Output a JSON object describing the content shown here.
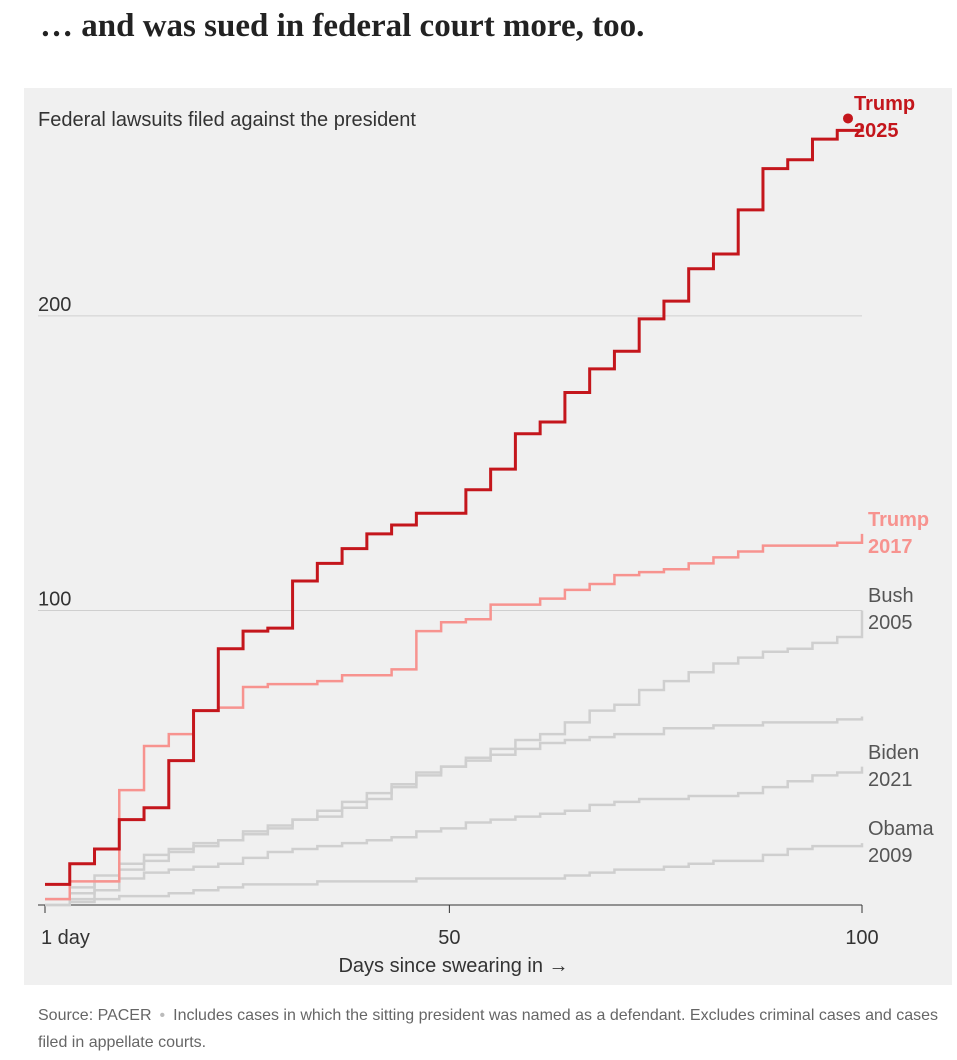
{
  "header": {
    "title": "… and was sued in federal court more, too."
  },
  "chart_data": {
    "type": "step",
    "subtitle": "Federal lawsuits filed against the president",
    "x_label": "Days since swearing in →",
    "x": [
      1,
      4,
      7,
      10,
      13,
      16,
      19,
      22,
      25,
      28,
      31,
      34,
      37,
      40,
      43,
      46,
      49,
      52,
      55,
      58,
      61,
      64,
      67,
      70,
      73,
      76,
      79,
      82,
      85,
      88,
      91,
      94,
      97,
      100
    ],
    "xlim": [
      1,
      100
    ],
    "xticks": [
      {
        "value": 1,
        "label": "1 day"
      },
      50,
      100
    ],
    "ylim": [
      0,
      275
    ],
    "yticks": [
      100,
      200
    ],
    "grid": true,
    "series": [
      {
        "color": "#cfcfcf",
        "values": [
          2,
          6,
          10,
          14,
          17,
          19,
          21,
          22,
          24,
          26,
          29,
          30,
          33,
          36,
          41,
          45,
          47,
          49,
          51,
          53,
          55,
          56,
          57,
          58,
          58,
          60,
          60,
          61,
          61,
          62,
          62,
          62,
          63,
          64
        ]
      },
      {
        "name": "Obama 2009",
        "color": "#cfcfcf",
        "values": [
          0,
          1,
          2,
          3,
          3,
          4,
          5,
          6,
          7,
          7,
          7,
          8,
          8,
          8,
          8,
          9,
          9,
          9,
          9,
          9,
          9,
          10,
          11,
          12,
          12,
          13,
          14,
          15,
          15,
          17,
          19,
          20,
          20,
          21
        ]
      },
      {
        "name": "Biden 2021",
        "color": "#cfcfcf",
        "values": [
          0,
          2,
          5,
          9,
          11,
          12,
          13,
          14,
          16,
          18,
          19,
          20,
          21,
          22,
          23,
          25,
          26,
          28,
          29,
          30,
          31,
          32,
          34,
          35,
          36,
          36,
          37,
          37,
          38,
          40,
          42,
          44,
          45,
          47
        ]
      },
      {
        "name": "Bush 2005",
        "color": "#cfcfcf",
        "values": [
          2,
          4,
          8,
          12,
          15,
          18,
          20,
          22,
          25,
          27,
          29,
          32,
          35,
          38,
          40,
          44,
          47,
          50,
          53,
          56,
          58,
          62,
          66,
          68,
          73,
          76,
          79,
          82,
          84,
          86,
          87,
          89,
          91,
          100
        ]
      },
      {
        "name": "Trump 2017",
        "color": "#f7938f",
        "values": [
          2,
          8,
          8,
          39,
          54,
          58,
          66,
          67,
          74,
          75,
          75,
          76,
          78,
          78,
          80,
          93,
          96,
          97,
          102,
          102,
          104,
          107,
          109,
          112,
          113,
          114,
          116,
          118,
          120,
          122,
          122,
          122,
          123,
          126
        ]
      },
      {
        "name": "Trump 2025",
        "color": "#c4161c",
        "values": [
          7,
          14,
          19,
          29,
          33,
          49,
          66,
          87,
          93,
          94,
          110,
          116,
          121,
          126,
          129,
          133,
          133,
          141,
          148,
          160,
          164,
          174,
          182,
          188,
          199,
          205,
          216,
          221,
          236,
          250,
          253,
          260,
          263,
          265
        ]
      }
    ]
  },
  "footer": {
    "source": "Source: PACER",
    "note": "Includes cases in which the sitting president was named as a defendant. Excludes criminal cases and cases filed in appellate courts."
  }
}
